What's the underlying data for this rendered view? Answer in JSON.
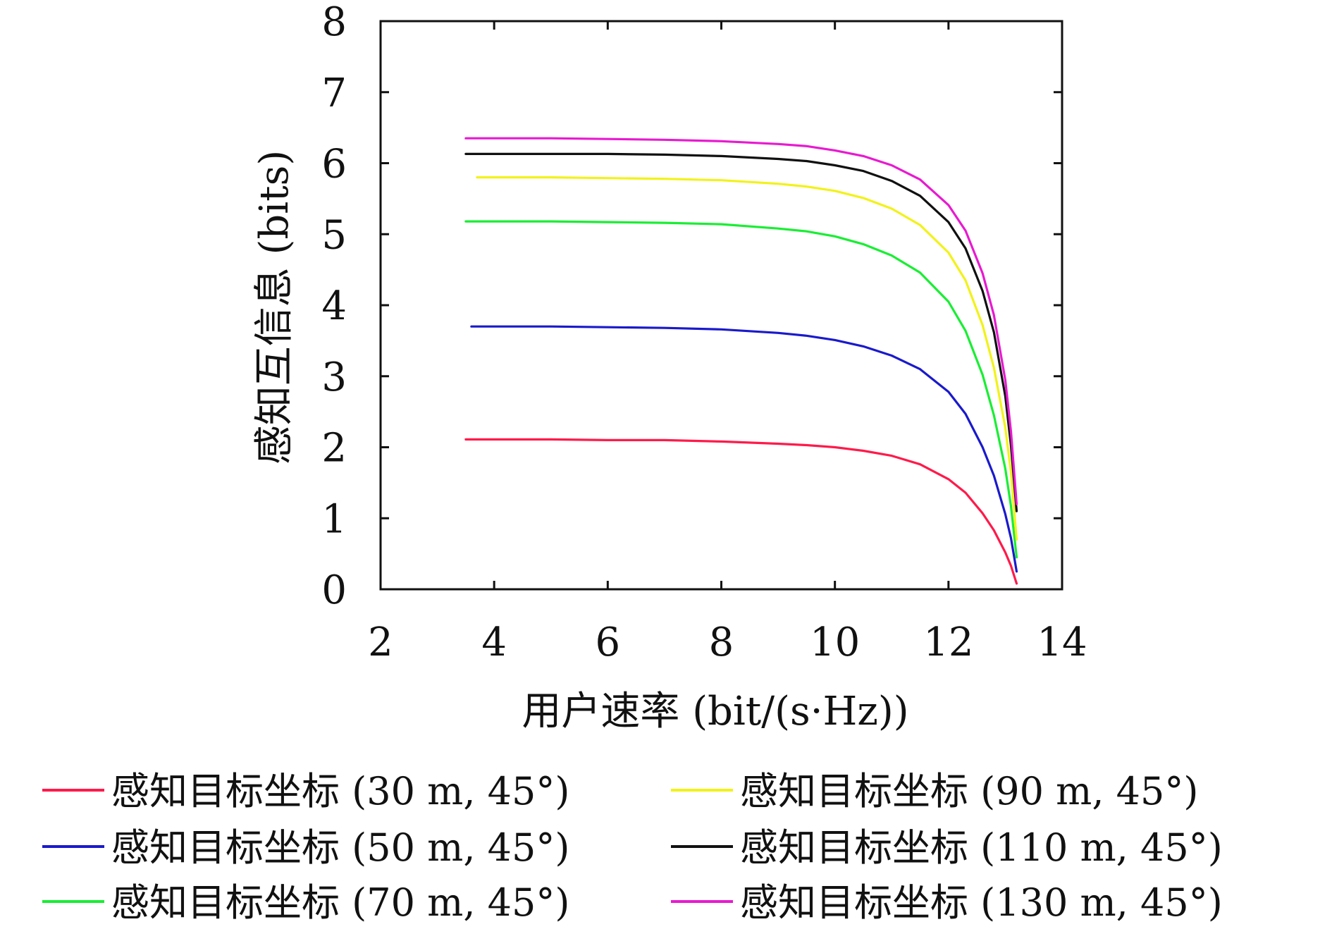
{
  "chart_data": {
    "type": "line",
    "xlabel": "用户速率 (bit/(s·Hz))",
    "ylabel": "感知互信息 (bits)",
    "xlim": [
      2,
      14
    ],
    "ylim": [
      0,
      8
    ],
    "xticks": [
      "2",
      "4",
      "6",
      "8",
      "10",
      "12",
      "14"
    ],
    "yticks": [
      "0",
      "1",
      "2",
      "3",
      "4",
      "5",
      "6",
      "7",
      "8"
    ],
    "grid": false,
    "legend_position": "bottom",
    "series": [
      {
        "name": "感知目标坐标 (30 m, 45°)",
        "color": "#ff1a4a",
        "x": [
          3.5,
          4.0,
          5.0,
          6.0,
          7.0,
          8.0,
          9.0,
          9.5,
          10.0,
          10.5,
          11.0,
          11.5,
          12.0,
          12.3,
          12.6,
          12.8,
          13.0,
          13.1,
          13.2
        ],
        "y": [
          2.11,
          2.11,
          2.11,
          2.1,
          2.1,
          2.08,
          2.05,
          2.03,
          2.0,
          1.95,
          1.88,
          1.76,
          1.55,
          1.36,
          1.07,
          0.83,
          0.52,
          0.33,
          0.08
        ]
      },
      {
        "name": "感知目标坐标 (50 m, 45°)",
        "color": "#1a1acc",
        "x": [
          3.6,
          4.0,
          5.0,
          6.0,
          7.0,
          8.0,
          9.0,
          9.5,
          10.0,
          10.5,
          11.0,
          11.5,
          12.0,
          12.3,
          12.6,
          12.8,
          13.0,
          13.1,
          13.2
        ],
        "y": [
          3.7,
          3.7,
          3.7,
          3.69,
          3.68,
          3.66,
          3.61,
          3.57,
          3.51,
          3.42,
          3.29,
          3.1,
          2.78,
          2.47,
          2.0,
          1.6,
          1.06,
          0.72,
          0.25
        ]
      },
      {
        "name": "感知目标坐标 (70 m, 45°)",
        "color": "#19ee33",
        "x": [
          3.5,
          4.0,
          5.0,
          6.0,
          7.0,
          8.0,
          9.0,
          9.5,
          10.0,
          10.5,
          11.0,
          11.5,
          12.0,
          12.3,
          12.6,
          12.8,
          13.0,
          13.1,
          13.2
        ],
        "y": [
          5.18,
          5.18,
          5.18,
          5.17,
          5.16,
          5.14,
          5.08,
          5.04,
          4.97,
          4.86,
          4.7,
          4.46,
          4.05,
          3.64,
          3.02,
          2.45,
          1.7,
          1.17,
          0.45
        ]
      },
      {
        "name": "感知目标坐标 (90 m, 45°)",
        "color": "#f2f21a",
        "x": [
          3.7,
          4.0,
          5.0,
          6.0,
          7.0,
          8.0,
          9.0,
          9.5,
          10.0,
          10.5,
          11.0,
          11.5,
          12.0,
          12.3,
          12.6,
          12.8,
          13.0,
          13.1,
          13.2
        ],
        "y": [
          5.8,
          5.8,
          5.8,
          5.79,
          5.78,
          5.76,
          5.71,
          5.67,
          5.61,
          5.51,
          5.36,
          5.13,
          4.74,
          4.35,
          3.72,
          3.12,
          2.28,
          1.65,
          0.7
        ]
      },
      {
        "name": "感知目标坐标 (110 m, 45°)",
        "color": "#111111",
        "x": [
          3.5,
          4.0,
          5.0,
          6.0,
          7.0,
          8.0,
          9.0,
          9.5,
          10.0,
          10.5,
          11.0,
          11.5,
          12.0,
          12.3,
          12.6,
          12.8,
          13.0,
          13.1,
          13.2
        ],
        "y": [
          6.13,
          6.13,
          6.13,
          6.13,
          6.12,
          6.1,
          6.06,
          6.03,
          5.97,
          5.89,
          5.75,
          5.54,
          5.17,
          4.8,
          4.2,
          3.62,
          2.72,
          2.02,
          1.1
        ]
      },
      {
        "name": "感知目标坐标 (130 m, 45°)",
        "color": "#e81ad0",
        "x": [
          3.5,
          4.0,
          5.0,
          6.0,
          7.0,
          8.0,
          9.0,
          9.5,
          10.0,
          10.5,
          11.0,
          11.5,
          12.0,
          12.3,
          12.6,
          12.8,
          13.0,
          13.1,
          13.2
        ],
        "y": [
          6.35,
          6.35,
          6.35,
          6.34,
          6.33,
          6.31,
          6.27,
          6.24,
          6.18,
          6.1,
          5.97,
          5.77,
          5.41,
          5.05,
          4.45,
          3.86,
          2.95,
          2.22,
          1.2
        ]
      }
    ]
  }
}
